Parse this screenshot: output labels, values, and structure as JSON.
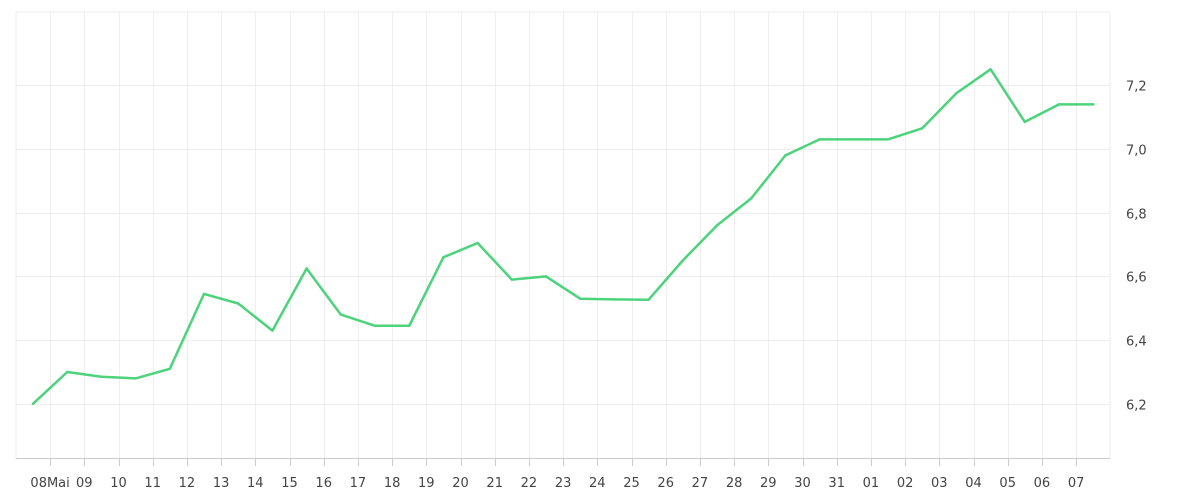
{
  "chart_data": {
    "type": "line",
    "x": [
      "07",
      "08",
      "09",
      "10",
      "11",
      "12",
      "13",
      "14",
      "15",
      "16",
      "17",
      "18",
      "19",
      "20",
      "21",
      "22",
      "23",
      "24",
      "25",
      "26",
      "27",
      "28",
      "29",
      "30",
      "31",
      "01",
      "02",
      "03",
      "04",
      "05",
      "06",
      "07"
    ],
    "x_tick_labels": [
      "08Mai",
      "09",
      "10",
      "11",
      "12",
      "13",
      "14",
      "15",
      "16",
      "17",
      "18",
      "19",
      "20",
      "21",
      "22",
      "23",
      "24",
      "25",
      "26",
      "27",
      "28",
      "29",
      "30",
      "31",
      "01",
      "02",
      "03",
      "04",
      "05",
      "06",
      "07"
    ],
    "series": [
      {
        "values": [
          6.2,
          6.3,
          6.285,
          6.28,
          6.31,
          6.545,
          6.515,
          6.43,
          6.625,
          6.48,
          6.445,
          6.445,
          6.66,
          6.705,
          6.59,
          6.6,
          6.53,
          6.528,
          6.527,
          6.65,
          6.76,
          6.845,
          6.98,
          7.03,
          7.03,
          7.03,
          7.065,
          7.175,
          7.25,
          7.085,
          7.14,
          7.14
        ]
      }
    ],
    "y_ticks": [
      "6,2",
      "6,4",
      "6,6",
      "6,8",
      "7,0",
      "7,2"
    ],
    "ylim": [
      6.03,
      7.43
    ],
    "y_axis_side": "right",
    "grid": true,
    "line_color": "#4cd37c",
    "title": "",
    "xlabel": "",
    "ylabel": ""
  }
}
